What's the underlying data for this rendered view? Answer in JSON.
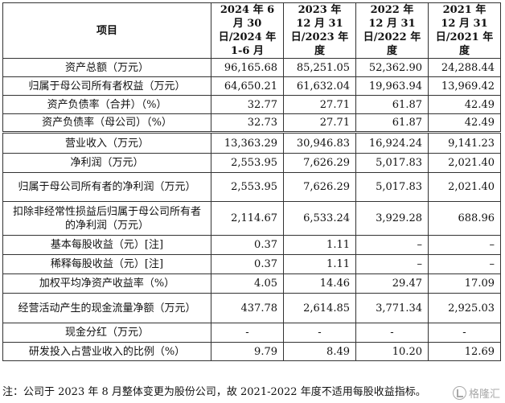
{
  "table": {
    "headers": [
      "项目",
      "2024 年 6 月 30 日/2024 年 1-6 月",
      "2023 年 12 月 31 日/2023 年度",
      "2022 年 12 月 31 日/2022 年度",
      "2021 年 12 月 31 日/2021 年度"
    ],
    "rows": [
      {
        "label": "资产总额（万元）",
        "values": [
          "96,165.68",
          "85,251.05",
          "52,362.90",
          "24,288.44"
        ]
      },
      {
        "label": "归属于母公司所有者权益（万元）",
        "values": [
          "64,650.21",
          "61,632.04",
          "19,963.94",
          "13,969.42"
        ]
      },
      {
        "label": "资产负债率（合并）（%）",
        "values": [
          "32.77",
          "27.71",
          "61.87",
          "42.49"
        ]
      },
      {
        "label": "资产负债率（母公司）（%）",
        "values": [
          "32.73",
          "27.71",
          "61.87",
          "42.49"
        ]
      },
      {
        "label": "营业收入（万元）",
        "values": [
          "13,363.29",
          "30,946.83",
          "16,924.24",
          "9,141.23"
        ]
      },
      {
        "label": "净利润（万元）",
        "values": [
          "2,553.95",
          "7,626.29",
          "5,017.83",
          "2,021.40"
        ]
      },
      {
        "label": "归属于母公司所有者的净利润（万元）",
        "values": [
          "2,553.95",
          "7,626.29",
          "5,017.83",
          "2,021.40"
        ]
      },
      {
        "label": "扣除非经常性损益后归属于母公司所有者的净利润（万元）",
        "values": [
          "2,114.67",
          "6,533.24",
          "3,929.28",
          "688.96"
        ]
      },
      {
        "label": "基本每股收益（元）[注]",
        "values": [
          "0.37",
          "1.11",
          "–",
          "–"
        ]
      },
      {
        "label": "稀释每股收益（元）[注]",
        "values": [
          "0.37",
          "1.11",
          "–",
          "–"
        ]
      },
      {
        "label": "加权平均净资产收益率（%）",
        "values": [
          "4.05",
          "14.46",
          "29.47",
          "17.09"
        ]
      },
      {
        "label": "经营活动产生的现金流量净额（万元）",
        "values": [
          "437.78",
          "2,614.85",
          "3,771.34",
          "2,925.03"
        ]
      },
      {
        "label": "现金分红（万元）",
        "values": [
          "-",
          "-",
          "-",
          "-"
        ]
      },
      {
        "label": "研发投入占营业收入的比例（%）",
        "values": [
          "9.79",
          "8.49",
          "10.20",
          "12.69"
        ]
      }
    ]
  },
  "footnote": "注：公司于 2023 年 8 月整体变更为股份公司，故 2021-2022 年度不适用每股收益指标。",
  "watermark": "格隆汇"
}
